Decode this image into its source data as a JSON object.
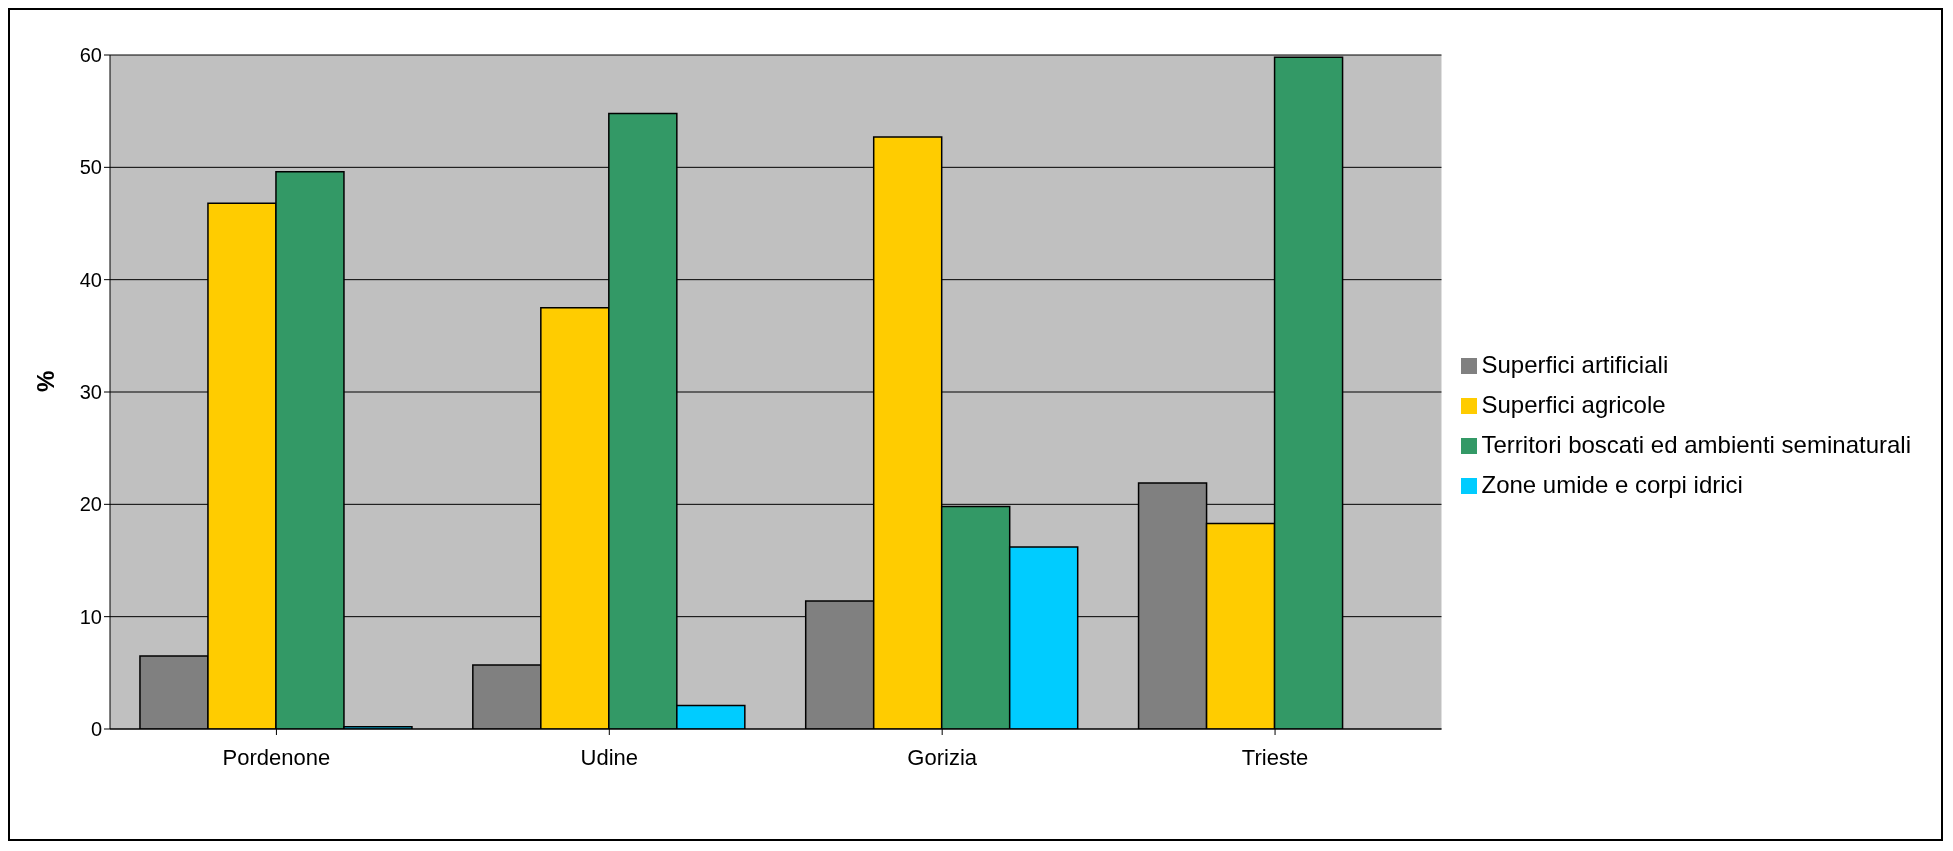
{
  "chart_data": {
    "type": "bar",
    "ylabel": "%",
    "categories": [
      "Pordenone",
      "Udine",
      "Gorizia",
      "Trieste"
    ],
    "series": [
      {
        "name": "Superfici artificiali",
        "color": "#808080",
        "values": [
          6.5,
          5.7,
          11.4,
          21.9
        ]
      },
      {
        "name": "Superfici agricole",
        "color": "#ffcc00",
        "values": [
          46.8,
          37.5,
          52.7,
          18.3
        ]
      },
      {
        "name": "Territori boscati ed ambienti seminaturali",
        "color": "#339966",
        "values": [
          49.6,
          54.8,
          19.8,
          59.8
        ]
      },
      {
        "name": "Zone umide e corpi idrici",
        "color": "#00ccff",
        "values": [
          0.2,
          2.1,
          16.2,
          0
        ]
      }
    ],
    "ylim": [
      0,
      60
    ],
    "yticks": [
      0,
      10,
      20,
      30,
      40,
      50,
      60
    ],
    "grid": "y",
    "legend": "right"
  }
}
